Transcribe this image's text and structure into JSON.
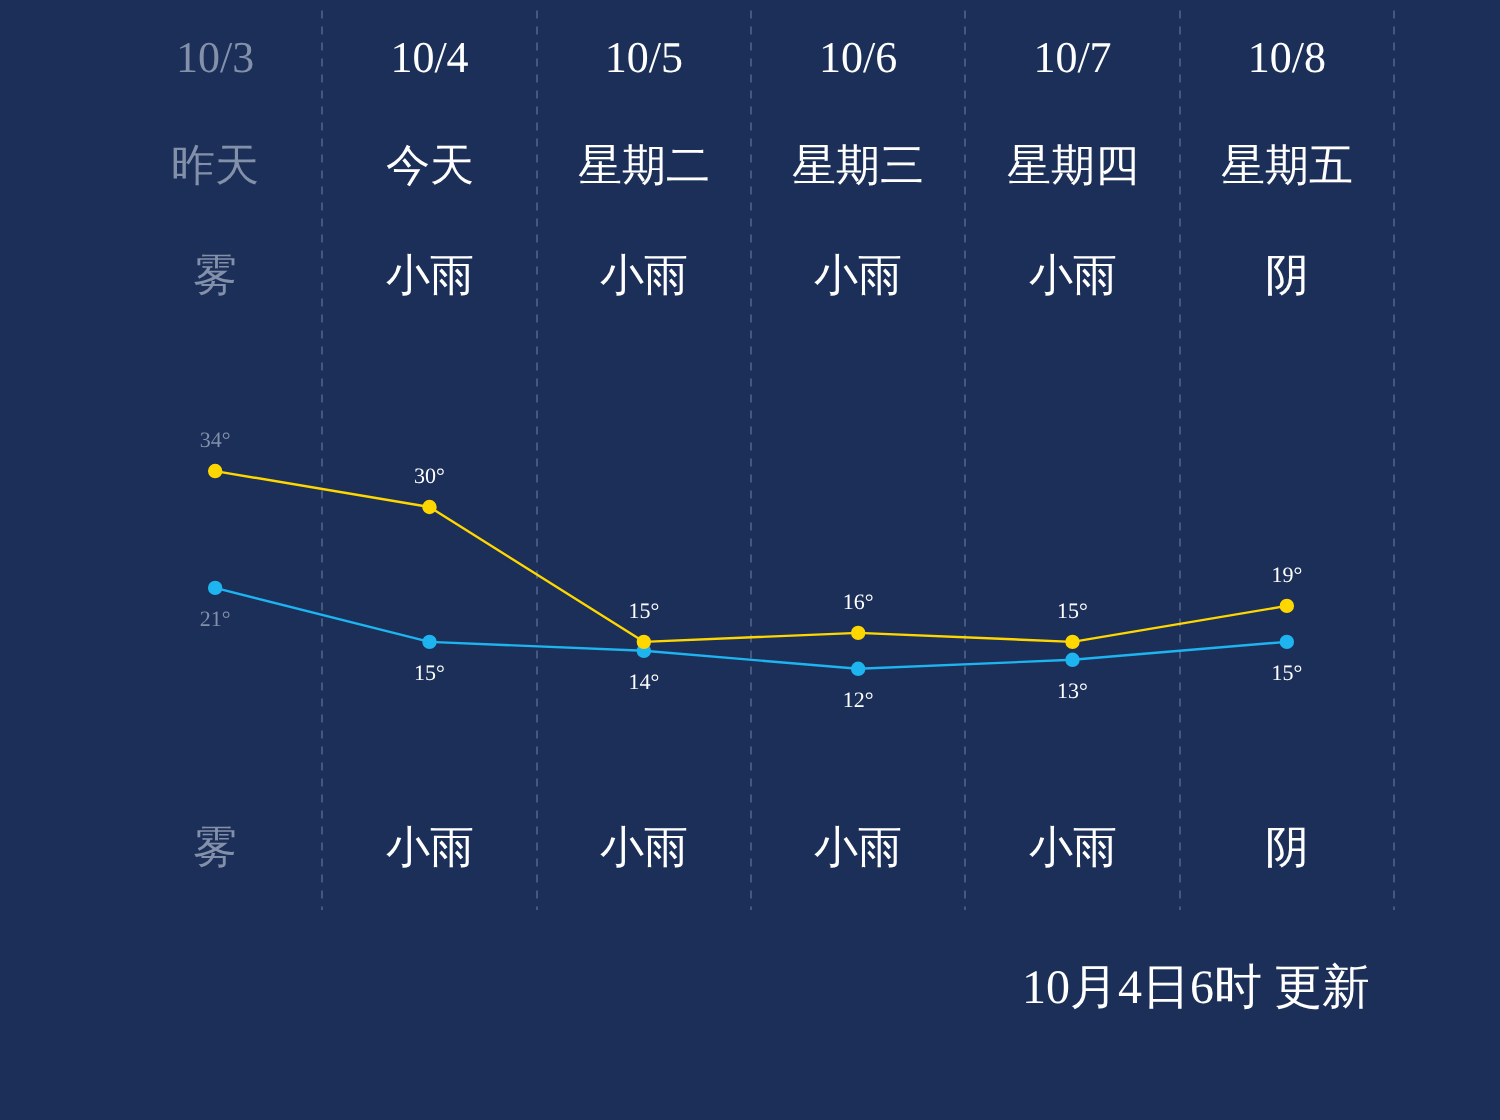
{
  "chart_data": {
    "type": "line",
    "categories": [
      "10/3",
      "10/4",
      "10/5",
      "10/6",
      "10/7",
      "10/8"
    ],
    "series": [
      {
        "color": "#ffd700",
        "values": [
          34,
          30,
          15,
          16,
          15,
          19
        ],
        "value_labels": [
          "34°",
          "30°",
          "15°",
          "16°",
          "15°",
          "19°"
        ]
      },
      {
        "color": "#1eb4f0",
        "values": [
          21,
          15,
          14,
          12,
          13,
          15
        ],
        "value_labels": [
          "21°",
          "15°",
          "14°",
          "12°",
          "13°",
          "15°"
        ]
      }
    ],
    "annotations": [
      "昨天",
      "今天",
      "星期二",
      "星期三",
      "星期四",
      "星期五",
      "雾",
      "小雨",
      "小雨",
      "小雨",
      "小雨",
      "阴",
      "雾",
      "小雨",
      "小雨",
      "小雨",
      "小雨",
      "阴",
      "10月4日6时 更新"
    ],
    "grid": "x",
    "legend": false,
    "marker": "circle",
    "line_style": "solid",
    "tick_labels": "x"
  }
}
